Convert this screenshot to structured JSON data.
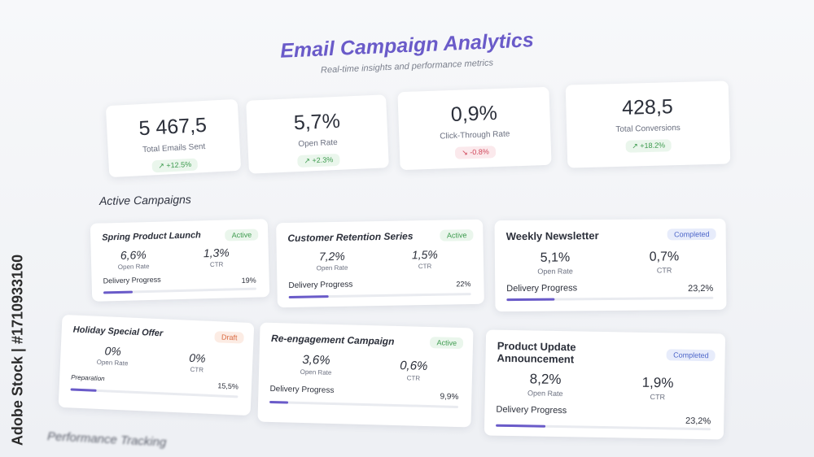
{
  "header": {
    "title": "Email Campaign Analytics",
    "subtitle": "Real-time insights and performance metrics"
  },
  "kpis": [
    {
      "value": "5 467,5",
      "label": "Total Emails Sent",
      "change": "↗ +12.5%",
      "trend": "up"
    },
    {
      "value": "5,7%",
      "label": "Open Rate",
      "change": "↗ +2.3%",
      "trend": "up"
    },
    {
      "value": "0,9%",
      "label": "Click-Through Rate",
      "change": "↘ -0.8%",
      "trend": "down"
    },
    {
      "value": "428,5",
      "label": "Total Conversions",
      "change": "↗ +18.2%",
      "trend": "up"
    }
  ],
  "active_campaigns": {
    "title": "Active Campaigns",
    "items": [
      {
        "name": "Spring Product Launch",
        "status": "Active",
        "open_rate": "6,6%",
        "open_rate_label": "Open Rate",
        "ctr": "1,3%",
        "ctr_label": "CTR",
        "progress_label": "Delivery Progress",
        "progress_text": "19%",
        "progress": 0.19
      },
      {
        "name": "Customer Retention Series",
        "status": "Active",
        "open_rate": "7,2%",
        "open_rate_label": "Open Rate",
        "ctr": "1,5%",
        "ctr_label": "CTR",
        "progress_label": "Delivery Progress",
        "progress_text": "22%",
        "progress": 0.22
      },
      {
        "name": "Weekly Newsletter",
        "status": "Completed",
        "open_rate": "5,1%",
        "open_rate_label": "Open Rate",
        "ctr": "0,7%",
        "ctr_label": "CTR",
        "progress_label": "Delivery Progress",
        "progress_text": "23,2%",
        "progress": 0.232
      },
      {
        "name": "Holiday Special Offer",
        "status": "Draft",
        "open_rate": "0%",
        "open_rate_label": "Open Rate",
        "ctr": "0%",
        "ctr_label": "CTR",
        "progress_label": "Preparation",
        "progress_text": "15,5%",
        "progress": 0.155
      },
      {
        "name": "Re-engagement Campaign",
        "status": "Active",
        "open_rate": "3,6%",
        "open_rate_label": "Open Rate",
        "ctr": "0,6%",
        "ctr_label": "CTR",
        "progress_label": "Delivery Progress",
        "progress_text": "9,9%",
        "progress": 0.099
      },
      {
        "name": "Product Update Announcement",
        "status": "Completed",
        "open_rate": "8,2%",
        "open_rate_label": "Open Rate",
        "ctr": "1,9%",
        "ctr_label": "CTR",
        "progress_label": "Delivery Progress",
        "progress_text": "23,2%",
        "progress": 0.232
      }
    ]
  },
  "performance": {
    "title": "Performance Tracking"
  },
  "watermark": {
    "text": "Adobe Stock | #1710933160"
  },
  "colors": {
    "accent": "#6a5bc9",
    "up": "#3c9a4d",
    "down": "#d0475a",
    "completed": "#4d66c9",
    "draft": "#d9683f"
  }
}
